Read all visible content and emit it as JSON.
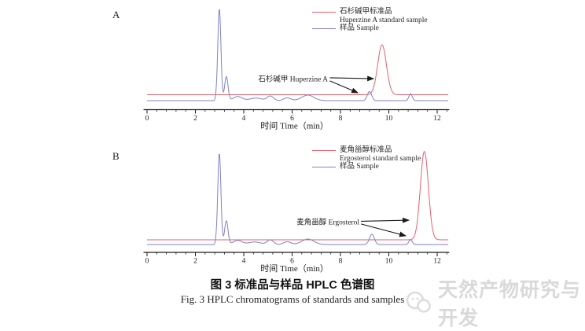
{
  "figure": {
    "caption_zh": "图 3  标准品与样品 HPLC 色谱图",
    "caption_en": "Fig. 3  HPLC chromatograms of standards and samples"
  },
  "watermark": {
    "text": "天然产物研究与开发",
    "logo": "wechat-bubbles-logo",
    "color": "#d9d9d9"
  },
  "chart_data": [
    {
      "type": "line",
      "panel_label": "A",
      "xlabel": "时间  Time（min）",
      "xlim": [
        0,
        12.5
      ],
      "xticks": [
        0,
        2,
        4,
        6,
        8,
        10,
        12
      ],
      "minor_tick_step": 0.4,
      "grid": false,
      "legend_position": "top-right",
      "series": [
        {
          "name": "Huperzine A standard",
          "legend_lines": [
            "石杉碱甲标准品",
            "Huperzine A standard sample"
          ],
          "color": "#e4606d",
          "baseline": 0.064,
          "peaks": [
            {
              "center": 9.72,
              "height": 0.543,
              "sigma": 0.18
            }
          ]
        },
        {
          "name": "Sample",
          "legend_lines": [
            "样品 Sample"
          ],
          "color": "#7f82c8",
          "baseline": 0.0,
          "peaks": [
            {
              "center": 2.99,
              "height": 1.0,
              "sigma": 0.065
            },
            {
              "center": 3.28,
              "height": 0.26,
              "sigma": 0.07
            },
            {
              "center": 3.75,
              "height": 0.045,
              "sigma": 0.18
            },
            {
              "center": 4.5,
              "height": 0.028,
              "sigma": 0.25
            },
            {
              "center": 5.1,
              "height": 0.05,
              "sigma": 0.13
            },
            {
              "center": 5.8,
              "height": 0.03,
              "sigma": 0.15
            },
            {
              "center": 6.65,
              "height": 0.06,
              "sigma": 0.25
            },
            {
              "center": 9.2,
              "height": 0.1,
              "sigma": 0.09
            },
            {
              "center": 10.9,
              "height": 0.075,
              "sigma": 0.07
            }
          ]
        }
      ],
      "annotation": {
        "text": "石杉碱甲  Huperzine A",
        "anchor": {
          "t": 7.48,
          "frac": 0.239
        },
        "arrows": [
          {
            "from": {
              "t": 7.56,
              "frac": 0.248
            },
            "to": {
              "t": 9.37,
              "frac": 0.239
            }
          },
          {
            "from": {
              "t": 7.56,
              "frac": 0.215
            },
            "to": {
              "t": 8.72,
              "frac": 0.085
            }
          }
        ]
      }
    },
    {
      "type": "line",
      "panel_label": "B",
      "xlabel": "时间  Time（min）",
      "xlim": [
        0,
        12.5
      ],
      "xticks": [
        0,
        2,
        4,
        6,
        8,
        10,
        12
      ],
      "minor_tick_step": 0.4,
      "grid": false,
      "legend_position": "top-right",
      "series": [
        {
          "name": "Ergosterol standard",
          "legend_lines": [
            "麦角甾醇标准品",
            "Ergosterol standard sample"
          ],
          "color": "#e4606d",
          "baseline": 0.052,
          "peaks": [
            {
              "center": 11.47,
              "height": 0.97,
              "sigma": 0.165
            }
          ]
        },
        {
          "name": "Sample",
          "legend_lines": [
            "样品 Sample"
          ],
          "color": "#7f82c8",
          "baseline": 0.0,
          "peaks": [
            {
              "center": 2.99,
              "height": 1.0,
              "sigma": 0.065
            },
            {
              "center": 3.28,
              "height": 0.26,
              "sigma": 0.07
            },
            {
              "center": 3.75,
              "height": 0.045,
              "sigma": 0.18
            },
            {
              "center": 4.45,
              "height": 0.028,
              "sigma": 0.25
            },
            {
              "center": 5.1,
              "height": 0.05,
              "sigma": 0.13
            },
            {
              "center": 5.8,
              "height": 0.03,
              "sigma": 0.15
            },
            {
              "center": 6.65,
              "height": 0.06,
              "sigma": 0.25
            },
            {
              "center": 9.3,
              "height": 0.112,
              "sigma": 0.1
            },
            {
              "center": 10.9,
              "height": 0.052,
              "sigma": 0.07
            }
          ]
        }
      ],
      "annotation": {
        "text": "麦角甾醇  Ergosterol",
        "anchor": {
          "t": 8.78,
          "frac": 0.25
        },
        "arrows": [
          {
            "from": {
              "t": 8.85,
              "frac": 0.255
            },
            "to": {
              "t": 10.83,
              "frac": 0.267
            }
          },
          {
            "from": {
              "t": 8.85,
              "frac": 0.225
            },
            "to": {
              "t": 10.7,
              "frac": 0.095
            }
          }
        ]
      }
    }
  ]
}
